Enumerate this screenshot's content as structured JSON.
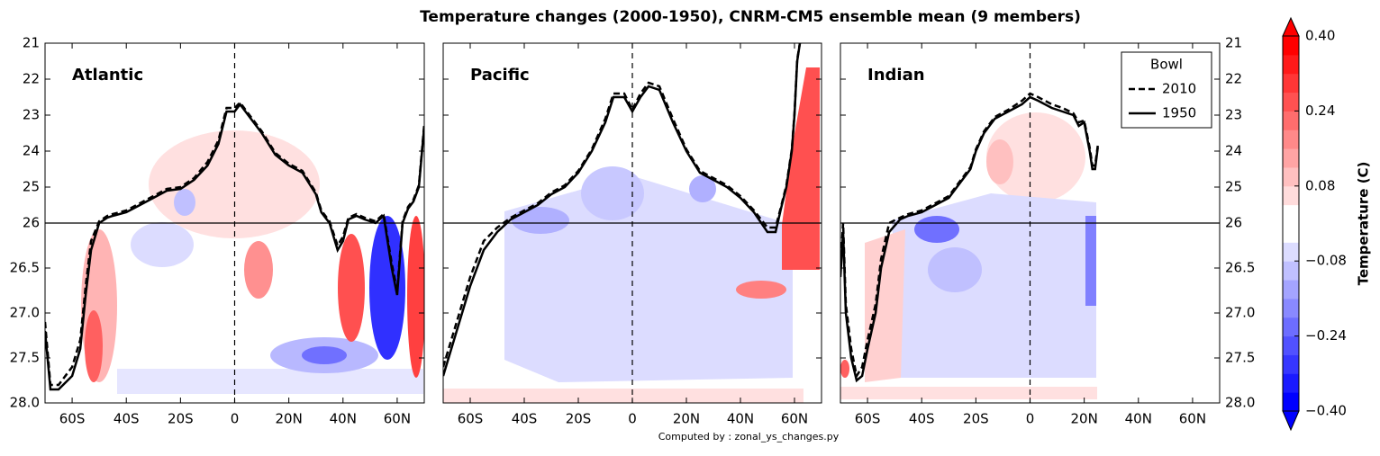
{
  "suptitle": "Temperature changes (2000-1950), CNRM-CM5 ensemble mean (9 members)",
  "footer": "Computed by : zonal_ys_changes.py",
  "colorbar": {
    "label": "Temperature (C)",
    "lim": [
      -0.4,
      0.4
    ],
    "ticks": [
      {
        "value": 0.4,
        "label": "0.40"
      },
      {
        "value": 0.24,
        "label": "0.24"
      },
      {
        "value": 0.08,
        "label": "0.08"
      },
      {
        "value": -0.08,
        "label": "−0.08"
      },
      {
        "value": -0.24,
        "label": "−0.24"
      },
      {
        "value": -0.4,
        "label": "−0.40"
      }
    ],
    "colors": [
      "#0000ff",
      "#1a1aff",
      "#3636ff",
      "#5151ff",
      "#6d6dff",
      "#8989ff",
      "#a4a4ff",
      "#c0c0ff",
      "#dcdcff",
      "#ffffff",
      "#ffffff",
      "#ffdcdc",
      "#ffc0c0",
      "#ffa4a4",
      "#ff8989",
      "#ff6d6d",
      "#ff5151",
      "#ff3636",
      "#ff1a1a",
      "#ff0000"
    ]
  },
  "chart_data": [
    {
      "type": "line",
      "title": "Atlantic",
      "xlim": [
        -70,
        70
      ],
      "xticks": [
        {
          "value": -60,
          "label": "60S"
        },
        {
          "value": -40,
          "label": "40S"
        },
        {
          "value": -20,
          "label": "20S"
        },
        0,
        {
          "value": 20,
          "label": "20N"
        },
        {
          "value": 40,
          "label": "40N"
        },
        {
          "value": 60,
          "label": "60N"
        }
      ],
      "ylim": [
        21,
        28
      ],
      "hline": 26,
      "vline": 0,
      "ytick_side": "left",
      "yticks": [
        21,
        22,
        23,
        24,
        25,
        26,
        26.5,
        {
          "value": 27,
          "label": "27.0"
        },
        27.5,
        {
          "value": 28,
          "label": "28.0"
        }
      ],
      "x": [
        -70,
        -68,
        -65,
        -60,
        -57,
        -55,
        -53,
        -50,
        -47,
        -45,
        -40,
        -35,
        -30,
        -25,
        -20,
        -15,
        -10,
        -6,
        -3,
        0,
        2,
        5,
        10,
        15,
        20,
        25,
        30,
        32,
        35,
        38,
        40,
        42,
        45,
        48,
        52,
        55,
        58,
        60,
        62,
        64,
        66,
        68,
        70
      ],
      "series": [
        {
          "color": "#000000",
          "dash": true,
          "values": [
            27.1,
            27.8,
            27.8,
            27.6,
            27.3,
            26.7,
            26.2,
            25.95,
            25.8,
            25.75,
            25.65,
            25.45,
            25.25,
            25.05,
            25.0,
            24.75,
            24.3,
            23.7,
            22.8,
            22.8,
            22.65,
            22.95,
            23.45,
            24.05,
            24.35,
            24.55,
            25.15,
            25.65,
            25.95,
            26.25,
            26.15,
            25.85,
            25.75,
            25.85,
            25.95,
            25.75,
            26.45,
            26.75,
            25.95,
            25.55,
            25.35,
            24.95,
            23.25
          ]
        },
        {
          "color": "#000000",
          "dash": false,
          "values": [
            27.2,
            27.85,
            27.85,
            27.7,
            27.4,
            26.8,
            26.3,
            26.0,
            25.85,
            25.8,
            25.7,
            25.5,
            25.3,
            25.1,
            25.05,
            24.8,
            24.4,
            23.8,
            22.9,
            22.9,
            22.7,
            23.0,
            23.5,
            24.1,
            24.4,
            24.6,
            25.2,
            25.7,
            26.0,
            26.3,
            26.2,
            25.9,
            25.8,
            25.9,
            26.0,
            25.8,
            26.5,
            26.8,
            26.0,
            25.6,
            25.4,
            25.0,
            23.3
          ]
        }
      ]
    },
    {
      "type": "line",
      "title": "Pacific",
      "xlim": [
        -70,
        70
      ],
      "xticks": [
        {
          "value": -60,
          "label": "60S"
        },
        {
          "value": -40,
          "label": "40S"
        },
        {
          "value": -20,
          "label": "20S"
        },
        0,
        {
          "value": 20,
          "label": "20N"
        },
        {
          "value": 40,
          "label": "40N"
        },
        {
          "value": 60,
          "label": "60N"
        }
      ],
      "ylim": [
        21,
        28
      ],
      "hline": 26,
      "vline": 0,
      "ytick_side": "none",
      "yticks": [
        21,
        22,
        23,
        24,
        25,
        26,
        26.5,
        {
          "value": 27,
          "label": "27.0"
        },
        27.5,
        {
          "value": 28,
          "label": "28.0"
        }
      ],
      "x": [
        -70,
        -68,
        -65,
        -60,
        -55,
        -50,
        -45,
        -40,
        -35,
        -30,
        -25,
        -20,
        -15,
        -10,
        -7,
        -3,
        0,
        3,
        6,
        10,
        15,
        20,
        25,
        30,
        35,
        40,
        45,
        50,
        53,
        55,
        57,
        59,
        60,
        61,
        62
      ],
      "series": [
        {
          "color": "#000000",
          "dash": true,
          "values": [
            27.6,
            27.4,
            27.1,
            26.6,
            26.2,
            26.05,
            25.85,
            25.65,
            25.45,
            25.15,
            24.95,
            24.55,
            23.95,
            23.1,
            22.4,
            22.4,
            22.85,
            22.4,
            22.1,
            22.2,
            23.1,
            23.95,
            24.55,
            24.75,
            24.95,
            25.25,
            25.65,
            26.05,
            26.05,
            25.55,
            24.95,
            23.95,
            22.95,
            21.45,
            21.0
          ]
        },
        {
          "color": "#000000",
          "dash": false,
          "values": [
            27.7,
            27.5,
            27.2,
            26.7,
            26.3,
            26.1,
            25.9,
            25.7,
            25.5,
            25.2,
            25.0,
            24.6,
            24.0,
            23.2,
            22.5,
            22.5,
            22.9,
            22.5,
            22.2,
            22.3,
            23.2,
            24.0,
            24.6,
            24.8,
            25.0,
            25.3,
            25.7,
            26.1,
            26.1,
            25.6,
            25.0,
            24.0,
            23.0,
            21.5,
            21.0
          ]
        }
      ]
    },
    {
      "type": "line",
      "title": "Indian",
      "xlim": [
        -70,
        70
      ],
      "xticks": [
        {
          "value": -60,
          "label": "60S"
        },
        {
          "value": -40,
          "label": "40S"
        },
        {
          "value": -20,
          "label": "20S"
        },
        0,
        {
          "value": 20,
          "label": "20N"
        },
        {
          "value": 40,
          "label": "40N"
        },
        {
          "value": 60,
          "label": "60N"
        }
      ],
      "ylim": [
        21,
        28
      ],
      "hline": 26,
      "vline": 0,
      "ytick_side": "right",
      "yticks": [
        21,
        22,
        23,
        24,
        25,
        26,
        26.5,
        {
          "value": 27,
          "label": "27.0"
        },
        27.5,
        {
          "value": 28,
          "label": "28.0"
        }
      ],
      "legend": {
        "title": "Bowl",
        "loc": "upper right"
      },
      "x": [
        -70,
        -69,
        -68,
        -66,
        -64,
        -62,
        -60,
        -57,
        -55,
        -52,
        -48,
        -45,
        -40,
        -35,
        -30,
        -27,
        -22,
        -20,
        -17,
        -13,
        -8,
        -3,
        0,
        3,
        8,
        12,
        16,
        18,
        20,
        22,
        23,
        24,
        25
      ],
      "series": [
        {
          "name": "2010",
          "color": "#000000",
          "dash": true,
          "values": [
            26.5,
            26.0,
            26.9,
            27.4,
            27.7,
            27.6,
            27.3,
            26.9,
            26.4,
            26.0,
            25.85,
            25.75,
            25.65,
            25.45,
            25.25,
            24.95,
            24.45,
            23.95,
            23.45,
            23.05,
            22.85,
            22.6,
            22.4,
            22.5,
            22.7,
            22.8,
            22.95,
            23.2,
            23.15,
            23.9,
            24.4,
            24.4,
            23.85
          ]
        },
        {
          "name": "1950",
          "color": "#000000",
          "dash": false,
          "values": [
            26.6,
            26.1,
            27.0,
            27.5,
            27.75,
            27.7,
            27.4,
            27.0,
            26.5,
            26.1,
            25.9,
            25.8,
            25.7,
            25.5,
            25.3,
            25.0,
            24.5,
            24.0,
            23.5,
            23.1,
            22.9,
            22.7,
            22.5,
            22.6,
            22.8,
            22.9,
            23.0,
            23.3,
            23.2,
            24.0,
            24.5,
            24.5,
            23.9
          ]
        }
      ]
    }
  ]
}
